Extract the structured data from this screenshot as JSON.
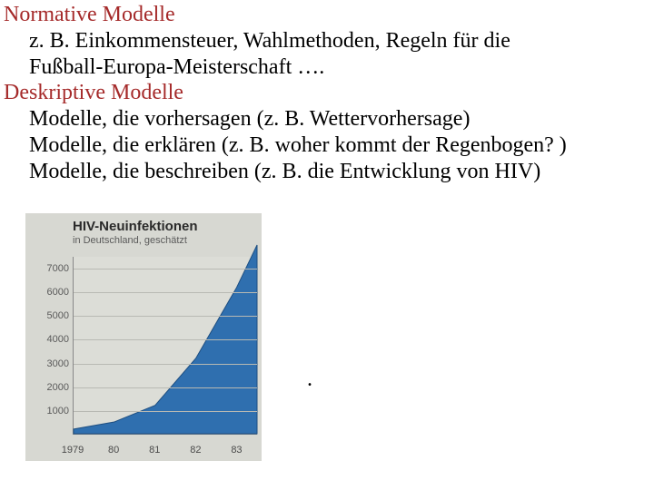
{
  "text": {
    "heading1": "Normative Modelle",
    "line1": "z. B. Einkommensteuer, Wahlmethoden, Regeln für die",
    "line2": "Fußball-Europa-Meisterschaft ….",
    "heading2": "Deskriptive Modelle",
    "line3": "Modelle, die vorhersagen (z. B. Wettervorhersage)",
    "line4": "Modelle, die erklären (z. B. woher kommt der Regenbogen? )",
    "line5": "Modelle, die beschreiben (z. B. die Entwicklung von HIV)",
    "stray": "."
  },
  "chart": {
    "type": "area",
    "title": "HIV-Neuinfektionen",
    "subtitle": "in Deutschland, geschätzt",
    "background_color": "#d7d8d2",
    "plot_background": "#dcddd7",
    "grid_color": "#b8b9b3",
    "axis_color": "#888888",
    "series_fill": "#2f6faf",
    "series_stroke": "#1e4e80",
    "title_fontsize": 15,
    "subtitle_fontsize": 11,
    "tick_fontsize": 11,
    "ylim": [
      0,
      7500
    ],
    "yticks": [
      1000,
      2000,
      3000,
      4000,
      5000,
      6000,
      7000
    ],
    "x_labels": [
      "1979",
      "80",
      "81",
      "82",
      "83"
    ],
    "x_values": [
      1979,
      1980,
      1981,
      1982,
      1983,
      1983.5
    ],
    "y_values": [
      200,
      500,
      1200,
      3200,
      6200,
      8000
    ]
  }
}
